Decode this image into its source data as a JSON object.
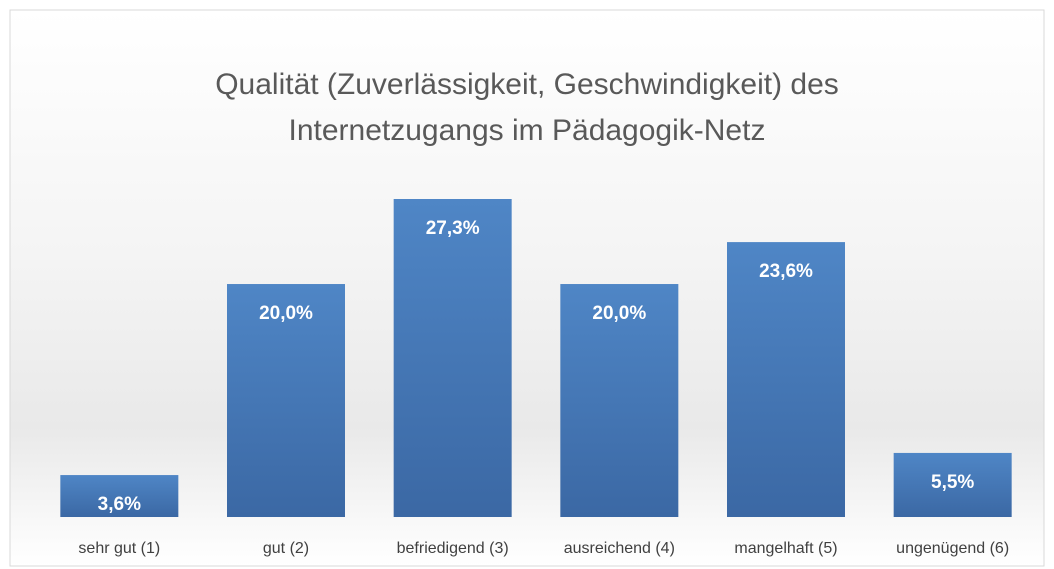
{
  "chart_data": {
    "type": "bar",
    "title": "Qualität (Zuverlässigkeit, Geschwindigkeit) des Internetzugangs im Pädagogik-Netz",
    "categories": [
      "sehr gut (1)",
      "gut (2)",
      "befriedigend (3)",
      "ausreichend (4)",
      "mangelhaft (5)",
      "ungenügend (6)"
    ],
    "values": [
      3.6,
      20.0,
      27.3,
      20.0,
      23.6,
      5.5
    ],
    "value_labels": [
      "3,6%",
      "20,0%",
      "27,3%",
      "20,0%",
      "23,6%",
      "5,5%"
    ],
    "color": "#4a7ebb"
  }
}
